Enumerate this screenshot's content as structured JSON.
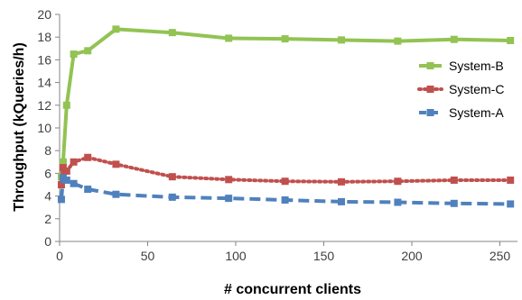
{
  "chart_data": {
    "type": "line",
    "xlabel": "# concurrent clients",
    "ylabel": "Throughput  (kQueries/h)",
    "xlim": [
      0,
      260
    ],
    "ylim": [
      0,
      20
    ],
    "x_ticks": [
      0,
      50,
      100,
      150,
      200,
      250
    ],
    "y_ticks": [
      0,
      2,
      4,
      6,
      8,
      10,
      12,
      14,
      16,
      18,
      20
    ],
    "grid": false,
    "legend_position": "right-middle",
    "series": [
      {
        "name": "System-B",
        "color": "#92c353",
        "line_style": "solid",
        "marker": "square",
        "x": [
          1,
          2,
          4,
          8,
          16,
          32,
          64,
          96,
          128,
          160,
          192,
          224,
          256
        ],
        "y": [
          5.7,
          7.0,
          12.0,
          16.5,
          16.8,
          18.7,
          18.4,
          17.9,
          17.85,
          17.75,
          17.65,
          17.8,
          17.7
        ]
      },
      {
        "name": "System-C",
        "color": "#c0504d",
        "line_style": "dotted",
        "marker": "square",
        "x": [
          1,
          2,
          4,
          8,
          16,
          32,
          64,
          96,
          128,
          160,
          192,
          224,
          256
        ],
        "y": [
          5.0,
          6.5,
          6.2,
          7.0,
          7.4,
          6.8,
          5.7,
          5.45,
          5.3,
          5.25,
          5.3,
          5.4,
          5.4
        ]
      },
      {
        "name": "System-A",
        "color": "#4f81bd",
        "line_style": "dashed",
        "marker": "square",
        "x": [
          1,
          2,
          4,
          8,
          16,
          32,
          64,
          96,
          128,
          160,
          192,
          224,
          256
        ],
        "y": [
          3.7,
          5.6,
          5.4,
          5.1,
          4.6,
          4.15,
          3.9,
          3.8,
          3.65,
          3.5,
          3.45,
          3.35,
          3.3
        ]
      }
    ]
  }
}
